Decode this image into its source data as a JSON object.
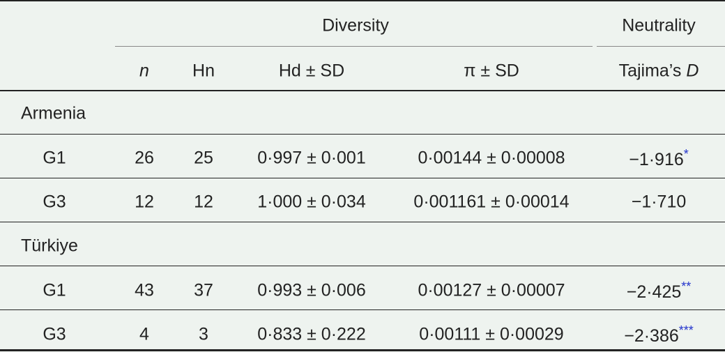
{
  "header": {
    "groups": [
      "Diversity",
      "Neutrality"
    ],
    "columns": [
      "n",
      "Hn",
      "Hd ± SD",
      "π ± SD"
    ],
    "tajima": {
      "text": "Tajima’s",
      "italic": "D"
    }
  },
  "sections": [
    {
      "name": "Armenia",
      "rows": [
        {
          "label": "G1",
          "n": 26,
          "hn": 25,
          "hd": "0·997 ± 0·001",
          "pi": "0·00144 ± 0·00008",
          "tajima": "−1·916",
          "sig": "*"
        },
        {
          "label": "G3",
          "n": 12,
          "hn": 12,
          "hd": "1·000 ± 0·034",
          "pi": "0·001161 ± 0·00014",
          "tajima": "−1·710"
        }
      ]
    },
    {
      "name": "Türkiye",
      "rows": [
        {
          "label": "G1",
          "n": 43,
          "hn": 37,
          "hd": "0·993 ± 0·006",
          "pi": "0·00127 ± 0·00007",
          "tajima": "−2·425",
          "sig": "**"
        },
        {
          "label": "G3",
          "n": 4,
          "hn": 3,
          "hd": "0·833 ± 0·222",
          "pi": "0·00111 ± 0·00029",
          "tajima": "−2·386",
          "sig": "***"
        }
      ]
    }
  ]
}
